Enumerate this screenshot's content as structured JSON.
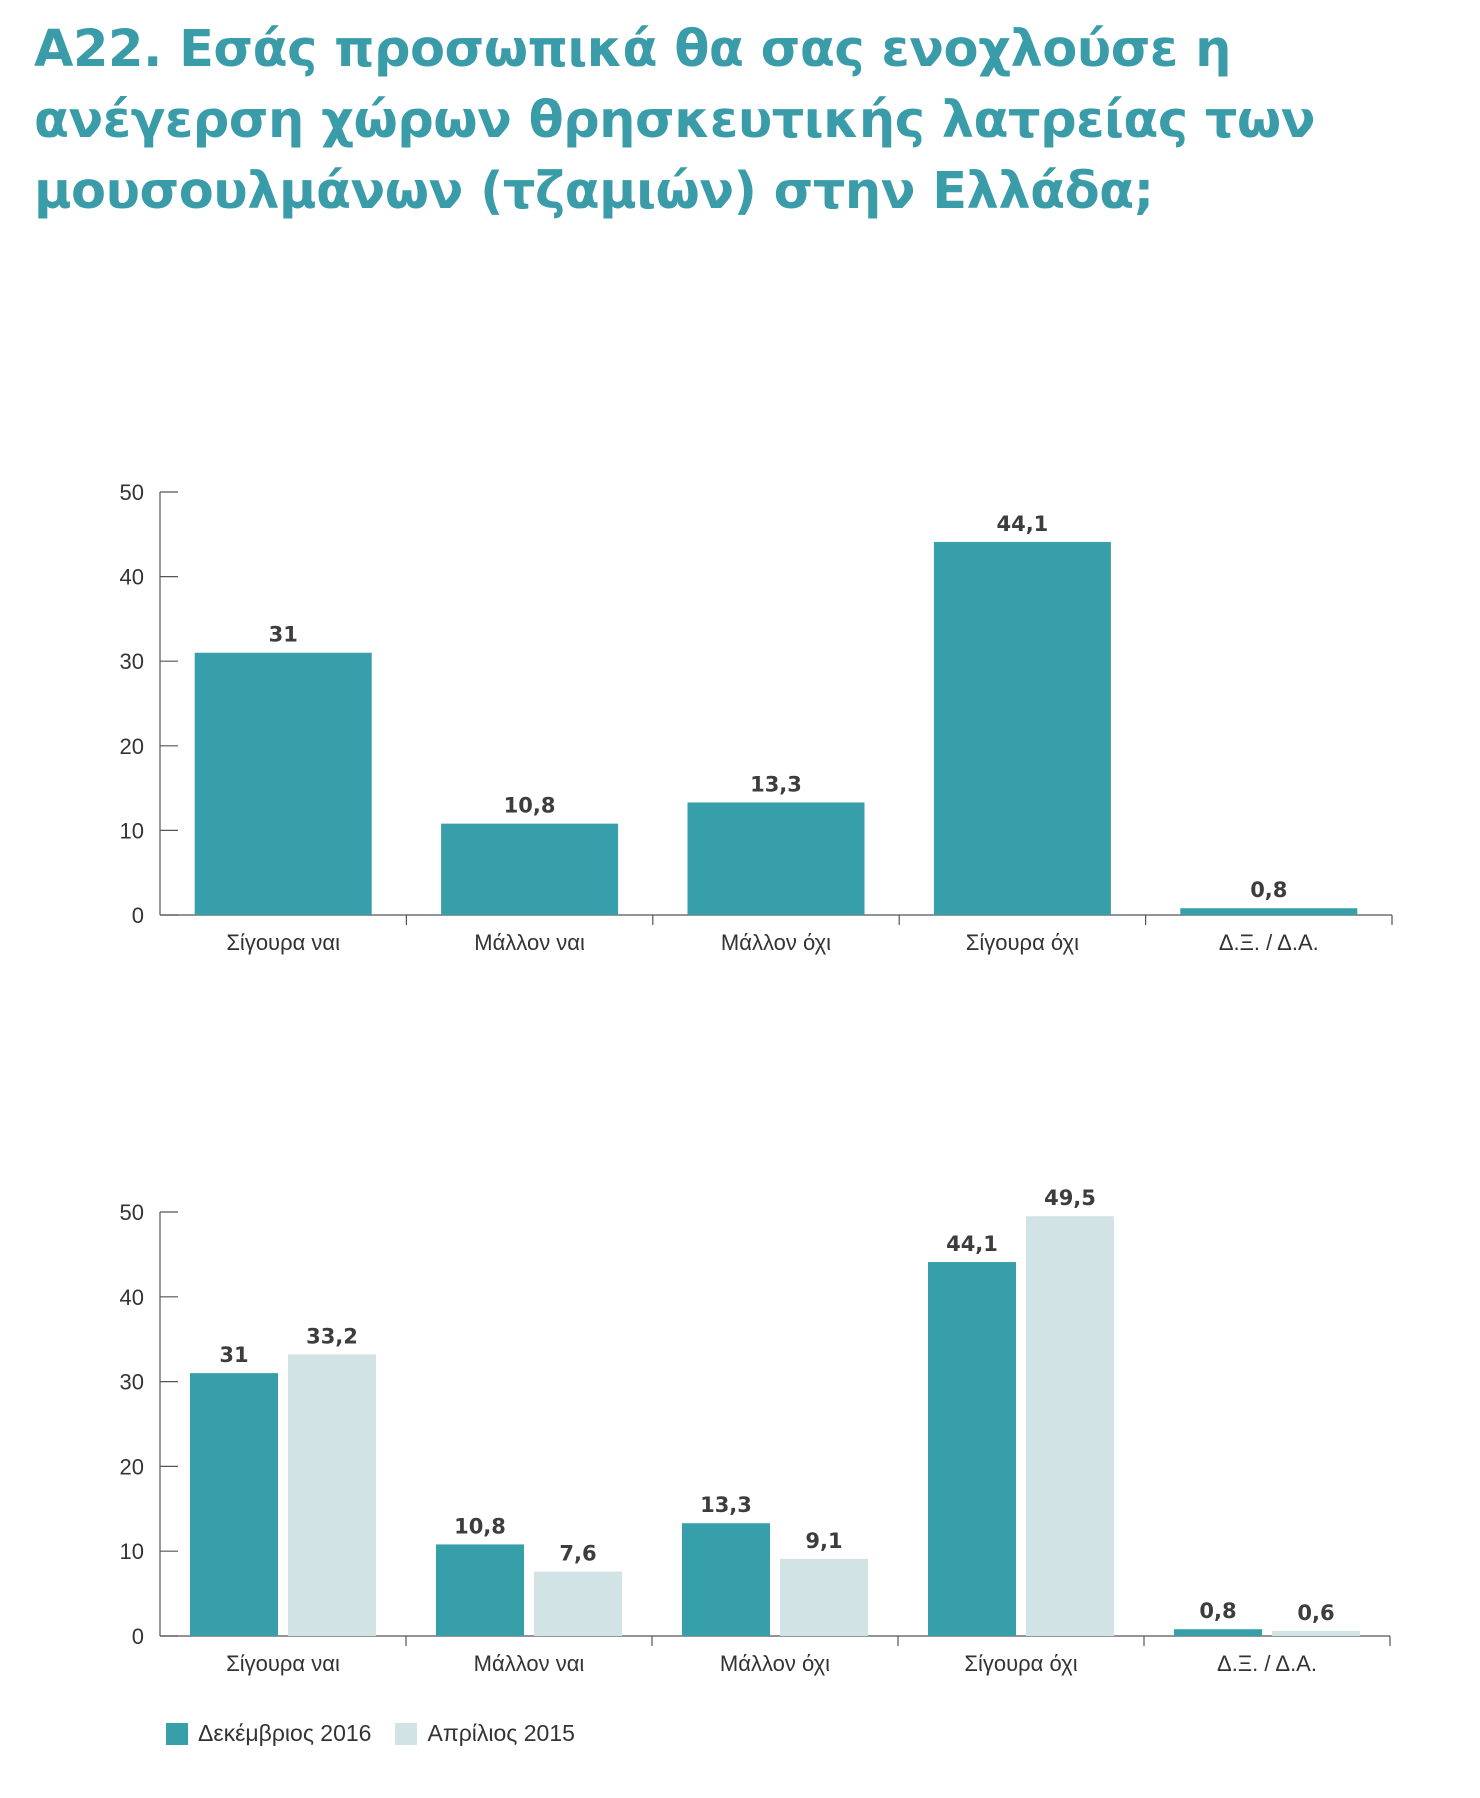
{
  "title_lines": [
    "A22. Εσάς προσωπικά θα σας ενοχλούσε η",
    "ανέγερση χώρων θρησκευτικής λατρείας των",
    "μουσουλμάνων (τζαμιών) στην Ελλάδα;"
  ],
  "colors": {
    "title": "#3a9ca8",
    "series_dec_2016": "#369faa",
    "series_apr_2015": "#d1e3e5",
    "axis": "#555555"
  },
  "legend": [
    {
      "label": "Δεκέμβριος 2016",
      "color": "#369faa"
    },
    {
      "label": "Απρίλιος 2015",
      "color": "#d1e3e5"
    }
  ],
  "chart_data": [
    {
      "type": "bar",
      "categories": [
        "Σίγουρα ναι",
        "Μάλλον ναι",
        "Μάλλον όχι",
        "Σίγουρα όχι",
        "Δ.Ξ. / Δ.Α."
      ],
      "series": [
        {
          "values": [
            31,
            10.8,
            13.3,
            44.1,
            0.8
          ],
          "labels": [
            "31",
            "10,8",
            "13,3",
            "44,1",
            "0,8"
          ],
          "color": "#369faa"
        }
      ],
      "ylim": [
        0,
        50
      ],
      "yticks": [
        0,
        10,
        20,
        30,
        40,
        50
      ],
      "grid": false
    },
    {
      "type": "bar",
      "categories": [
        "Σίγουρα ναι",
        "Μάλλον ναι",
        "Μάλλον όχι",
        "Σίγουρα όχι",
        "Δ.Ξ. / Δ.Α."
      ],
      "series": [
        {
          "name": "Δεκέμβριος 2016",
          "values": [
            31,
            10.8,
            13.3,
            44.1,
            0.8
          ],
          "labels": [
            "31",
            "10,8",
            "13,3",
            "44,1",
            "0,8"
          ],
          "color": "#369faa"
        },
        {
          "name": "Απρίλιος 2015",
          "values": [
            33.2,
            7.6,
            9.1,
            49.5,
            0.6
          ],
          "labels": [
            "33,2",
            "7,6",
            "9,1",
            "49,5",
            "0,6"
          ],
          "color": "#d1e3e5"
        }
      ],
      "ylim": [
        0,
        50
      ],
      "yticks": [
        0,
        10,
        20,
        30,
        40,
        50
      ],
      "grid": false,
      "legend_position": "bottom-left"
    }
  ]
}
